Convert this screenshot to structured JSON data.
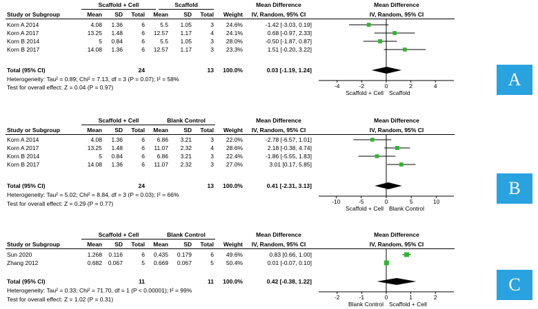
{
  "colors": {
    "accent": "#29a2e0",
    "marker": "#2db82d",
    "diamond": "#000000"
  },
  "chart_data": [
    {
      "type": "forest",
      "label": "A",
      "headers": {
        "group1": "Scaffold + Cell",
        "group2": "Scaffold",
        "study": "Study or Subgroup",
        "mean": "Mean",
        "sd": "SD",
        "total": "Total",
        "weight": "Weight",
        "md_title": "Mean Difference",
        "md_method": "IV, Random, 95% CI"
      },
      "studies": [
        {
          "name": "Korn A 2014",
          "m1": "4.08",
          "sd1": "1.36",
          "n1": "6",
          "m2": "5.5",
          "sd2": "1.05",
          "n2": "3",
          "weight": "24.6%",
          "ci_text": "-1.42 [-3.03, 0.19]",
          "md": -1.42,
          "lo": -3.03,
          "hi": 0.19,
          "w": 24.6
        },
        {
          "name": "Korn A 2017",
          "m1": "13.25",
          "sd1": "1.48",
          "n1": "6",
          "m2": "12.57",
          "sd2": "1.17",
          "n2": "4",
          "weight": "24.1%",
          "ci_text": "0.68 [-0.97, 2.33]",
          "md": 0.68,
          "lo": -0.97,
          "hi": 2.33,
          "w": 24.1
        },
        {
          "name": "Korn B 2014",
          "m1": "5",
          "sd1": "0.84",
          "n1": "6",
          "m2": "5.5",
          "sd2": "1.05",
          "n2": "3",
          "weight": "28.0%",
          "ci_text": "-0.50 [-1.87, 0.87]",
          "md": -0.5,
          "lo": -1.87,
          "hi": 0.87,
          "w": 28.0
        },
        {
          "name": "Korn B 2017",
          "m1": "14.08",
          "sd1": "1.36",
          "n1": "6",
          "m2": "12.57",
          "sd2": "1.17",
          "n2": "3",
          "weight": "23.3%",
          "ci_text": "1.51 [-0.20, 3.22]",
          "md": 1.51,
          "lo": -0.2,
          "hi": 3.22,
          "w": 23.3
        }
      ],
      "total": {
        "label": "Total (95% CI)",
        "n1": "24",
        "n2": "13",
        "weight": "100.0%",
        "ci_text": "0.03 [-1.19, 1.24]",
        "md": 0.03,
        "lo": -1.19,
        "hi": 1.24
      },
      "heterogeneity": "Heterogeneity: Tau² = 0.89; Chi² = 7.13, df = 3 (P = 0.07); I² = 58%",
      "overall": "Test for overall effect: Z = 0.04 (P = 0.97)",
      "axis": {
        "min": -5.5,
        "max": 5.5,
        "ticks": [
          -4,
          -2,
          0,
          2,
          4
        ],
        "left_label": "Scaffold + Cell",
        "right_label": "Scaffold"
      }
    },
    {
      "type": "forest",
      "label": "B",
      "headers": {
        "group1": "Scaffold + Cell",
        "group2": "Blank Control",
        "study": "Study or Subgroup",
        "mean": "Mean",
        "sd": "SD",
        "total": "Total",
        "weight": "Weight",
        "md_title": "Mean Difference",
        "md_method": "IV, Random, 95% CI"
      },
      "studies": [
        {
          "name": "Korn A 2014",
          "m1": "4.08",
          "sd1": "1.36",
          "n1": "6",
          "m2": "6.86",
          "sd2": "3.21",
          "n2": "3",
          "weight": "22.0%",
          "ci_text": "-2.78 [-6.57, 1.01]",
          "md": -2.78,
          "lo": -6.57,
          "hi": 1.01,
          "w": 22.0
        },
        {
          "name": "Korn A 2017",
          "m1": "13.25",
          "sd1": "1.48",
          "n1": "6",
          "m2": "11.07",
          "sd2": "2.32",
          "n2": "4",
          "weight": "28.6%",
          "ci_text": "2.18 [-0.38, 4.74]",
          "md": 2.18,
          "lo": -0.38,
          "hi": 4.74,
          "w": 28.6
        },
        {
          "name": "Korn B 2014",
          "m1": "5",
          "sd1": "0.84",
          "n1": "6",
          "m2": "6.86",
          "sd2": "3.21",
          "n2": "3",
          "weight": "22.4%",
          "ci_text": "-1.86 [-5.55, 1.83]",
          "md": -1.86,
          "lo": -5.55,
          "hi": 1.83,
          "w": 22.4
        },
        {
          "name": "Korn B 2017",
          "m1": "14.08",
          "sd1": "1.36",
          "n1": "6",
          "m2": "11.07",
          "sd2": "2.32",
          "n2": "3",
          "weight": "27.0%",
          "ci_text": "3.01 [0.17, 5.85]",
          "md": 3.01,
          "lo": 0.17,
          "hi": 5.85,
          "w": 27.0
        }
      ],
      "total": {
        "label": "Total (95% CI)",
        "n1": "24",
        "n2": "13",
        "weight": "100.0%",
        "ci_text": "0.41 [-2.31, 3.13]",
        "md": 0.41,
        "lo": -2.31,
        "hi": 3.13
      },
      "heterogeneity": "Heterogeneity: Tau² = 5.02; Chi² = 8.84, df = 3 (P = 0.03); I² = 66%",
      "overall": "Test for overall effect: Z = 0.29 (P = 0.77)",
      "axis": {
        "min": -13.5,
        "max": 13.5,
        "ticks": [
          -10,
          -5,
          0,
          5,
          10
        ],
        "left_label": "Scaffold + Cell",
        "right_label": "Blank Control"
      }
    },
    {
      "type": "forest",
      "label": "C",
      "headers": {
        "group1": "Scaffold + Cell",
        "group2": "Blank Control",
        "study": "Study or Subgroup",
        "mean": "Mean",
        "sd": "SD",
        "total": "Total",
        "weight": "Weight",
        "md_title": "Mean Difference",
        "md_method": "IV, Random, 95% CI"
      },
      "studies": [
        {
          "name": "Sun 2020",
          "m1": "1.268",
          "sd1": "0.116",
          "n1": "6",
          "m2": "0.435",
          "sd2": "0.179",
          "n2": "6",
          "weight": "49.6%",
          "ci_text": "0.83 [0.66, 1.00]",
          "md": 0.83,
          "lo": 0.66,
          "hi": 1.0,
          "w": 49.6
        },
        {
          "name": "Zhang 2012",
          "m1": "0.682",
          "sd1": "0.067",
          "n1": "5",
          "m2": "0.669",
          "sd2": "0.067",
          "n2": "5",
          "weight": "50.4%",
          "ci_text": "0.01 [-0.07, 0.10]",
          "md": 0.01,
          "lo": -0.07,
          "hi": 0.1,
          "w": 50.4
        }
      ],
      "total": {
        "label": "Total (95% CI)",
        "n1": "11",
        "n2": "11",
        "weight": "100.0%",
        "ci_text": "0.42 [-0.38, 1.22]",
        "md": 0.42,
        "lo": -0.38,
        "hi": 1.22
      },
      "heterogeneity": "Heterogeneity: Tau² = 0.33; Chi² = 71.70, df = 1 (P < 0.00001); I² = 99%",
      "overall": "Test for overall effect: Z = 1.02 (P = 0.31)",
      "axis": {
        "min": -2.75,
        "max": 2.75,
        "ticks": [
          -2,
          -1,
          0,
          1,
          2
        ],
        "left_label": "Blank Control",
        "right_label": "Scaffold + Cell"
      }
    }
  ]
}
